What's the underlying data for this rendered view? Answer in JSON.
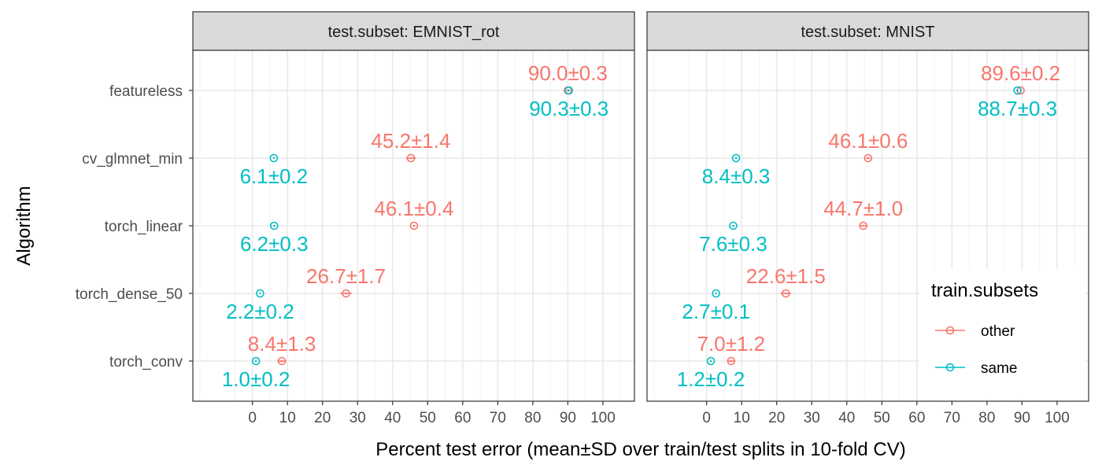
{
  "chart_data": {
    "type": "scatter",
    "xlabel": "Percent test error (mean±SD over train/test splits in 10-fold CV)",
    "ylabel": "Algorithm",
    "xlim": [
      -17,
      109
    ],
    "x_ticks": [
      0,
      10,
      20,
      30,
      40,
      50,
      60,
      70,
      80,
      90,
      100
    ],
    "algorithms": [
      "featureless",
      "cv_glmnet_min",
      "torch_linear",
      "torch_dense_50",
      "torch_conv"
    ],
    "grid": true,
    "legend": {
      "title": "train.subsets",
      "placement": "right-inside",
      "entries": [
        {
          "label": "other",
          "color": "#F8766D"
        },
        {
          "label": "same",
          "color": "#00BFC4"
        }
      ]
    },
    "panels": [
      {
        "strip": "test.subset: EMNIST_rot",
        "series": [
          {
            "name": "other",
            "color": "#F8766D",
            "points": [
              {
                "algorithm": "featureless",
                "mean": 90.0,
                "sd": 0.3,
                "label": "90.0±0.3"
              },
              {
                "algorithm": "cv_glmnet_min",
                "mean": 45.2,
                "sd": 1.4,
                "label": "45.2±1.4"
              },
              {
                "algorithm": "torch_linear",
                "mean": 46.1,
                "sd": 0.4,
                "label": "46.1±0.4"
              },
              {
                "algorithm": "torch_dense_50",
                "mean": 26.7,
                "sd": 1.7,
                "label": "26.7±1.7"
              },
              {
                "algorithm": "torch_conv",
                "mean": 8.4,
                "sd": 1.3,
                "label": "8.4±1.3"
              }
            ]
          },
          {
            "name": "same",
            "color": "#00BFC4",
            "points": [
              {
                "algorithm": "featureless",
                "mean": 90.3,
                "sd": 0.3,
                "label": "90.3±0.3"
              },
              {
                "algorithm": "cv_glmnet_min",
                "mean": 6.1,
                "sd": 0.2,
                "label": "6.1±0.2"
              },
              {
                "algorithm": "torch_linear",
                "mean": 6.2,
                "sd": 0.3,
                "label": "6.2±0.3"
              },
              {
                "algorithm": "torch_dense_50",
                "mean": 2.2,
                "sd": 0.2,
                "label": "2.2±0.2"
              },
              {
                "algorithm": "torch_conv",
                "mean": 1.0,
                "sd": 0.2,
                "label": "1.0±0.2"
              }
            ]
          }
        ]
      },
      {
        "strip": "test.subset: MNIST",
        "series": [
          {
            "name": "other",
            "color": "#F8766D",
            "points": [
              {
                "algorithm": "featureless",
                "mean": 89.6,
                "sd": 0.2,
                "label": "89.6±0.2"
              },
              {
                "algorithm": "cv_glmnet_min",
                "mean": 46.1,
                "sd": 0.6,
                "label": "46.1±0.6"
              },
              {
                "algorithm": "torch_linear",
                "mean": 44.7,
                "sd": 1.0,
                "label": "44.7±1.0"
              },
              {
                "algorithm": "torch_dense_50",
                "mean": 22.6,
                "sd": 1.5,
                "label": "22.6±1.5"
              },
              {
                "algorithm": "torch_conv",
                "mean": 7.0,
                "sd": 1.2,
                "label": "7.0±1.2"
              }
            ]
          },
          {
            "name": "same",
            "color": "#00BFC4",
            "points": [
              {
                "algorithm": "featureless",
                "mean": 88.7,
                "sd": 0.3,
                "label": "88.7±0.3"
              },
              {
                "algorithm": "cv_glmnet_min",
                "mean": 8.4,
                "sd": 0.3,
                "label": "8.4±0.3"
              },
              {
                "algorithm": "torch_linear",
                "mean": 7.6,
                "sd": 0.3,
                "label": "7.6±0.3"
              },
              {
                "algorithm": "torch_dense_50",
                "mean": 2.7,
                "sd": 0.1,
                "label": "2.7±0.1"
              },
              {
                "algorithm": "torch_conv",
                "mean": 1.2,
                "sd": 0.2,
                "label": "1.2±0.2"
              }
            ]
          }
        ]
      }
    ]
  }
}
